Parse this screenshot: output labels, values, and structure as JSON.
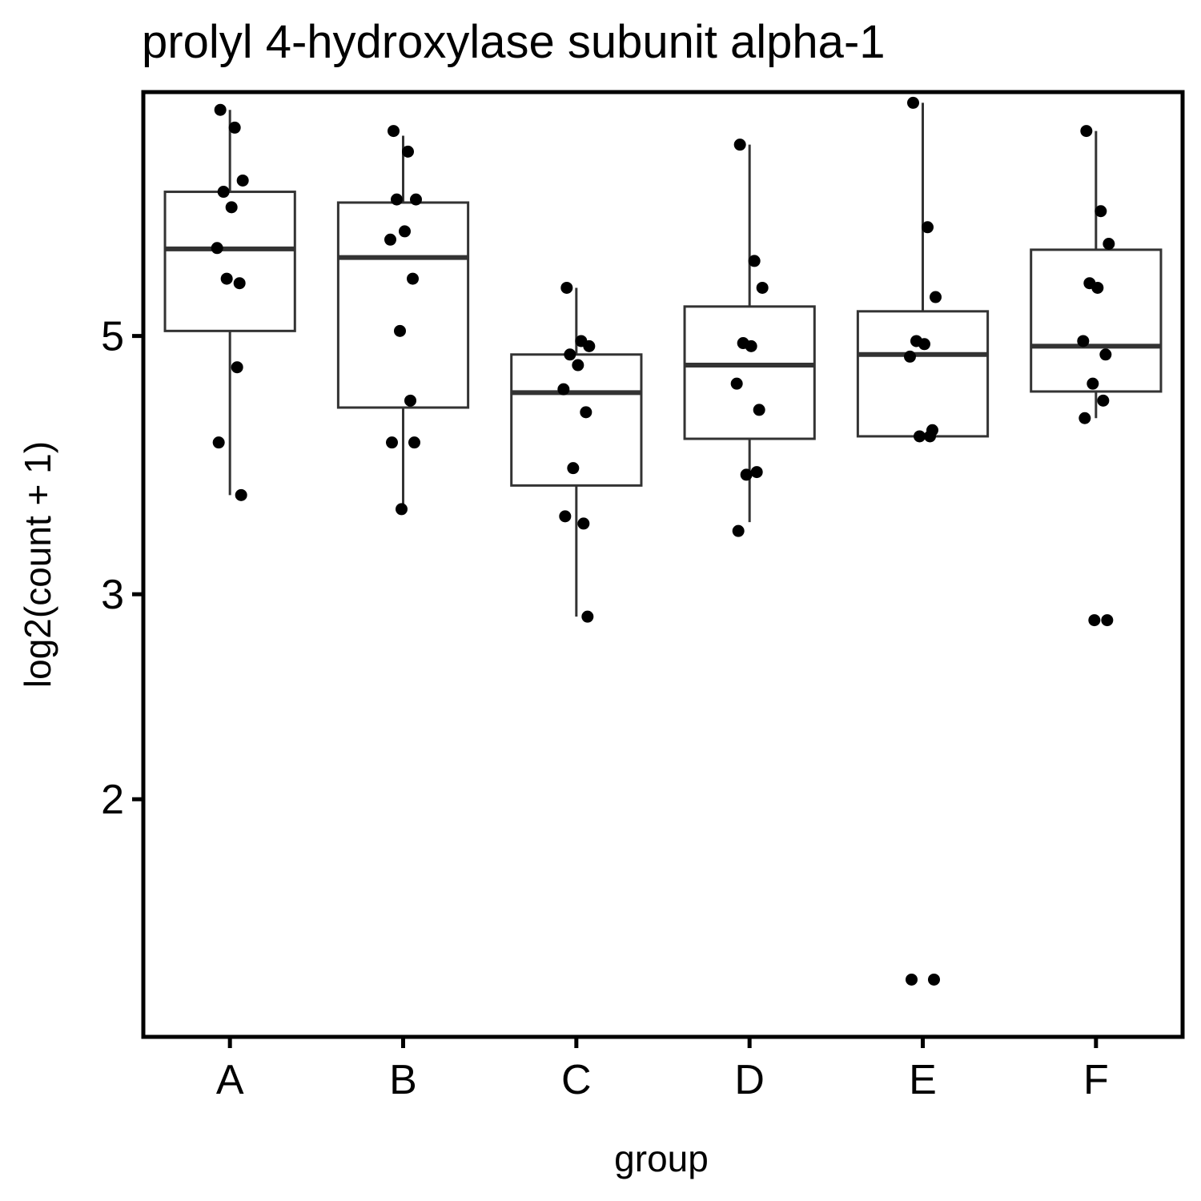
{
  "chart_data": {
    "type": "box",
    "title": "prolyl 4-hydroxylase subunit alpha-1",
    "xlabel": "group",
    "ylabel": "log2(count + 1)",
    "y_scale": "log",
    "y_ticks": [
      2,
      3,
      5
    ],
    "ylim": [
      1.25,
      8.1
    ],
    "grid": false,
    "categories": [
      "A",
      "B",
      "C",
      "D",
      "E",
      "F"
    ],
    "boxes": [
      {
        "group": "A",
        "whisker_low": 3.65,
        "q1": 5.05,
        "median": 5.94,
        "q3": 6.65,
        "whisker_high": 7.82
      },
      {
        "group": "B",
        "whisker_low": 3.55,
        "q1": 4.34,
        "median": 5.84,
        "q3": 6.51,
        "whisker_high": 7.43
      },
      {
        "group": "C",
        "whisker_low": 2.87,
        "q1": 3.72,
        "median": 4.47,
        "q3": 4.82,
        "whisker_high": 5.5
      },
      {
        "group": "D",
        "whisker_low": 3.46,
        "q1": 4.08,
        "median": 4.72,
        "q3": 5.3,
        "whisker_high": 7.3
      },
      {
        "group": "E",
        "whisker_low": 4.1,
        "q1": 4.1,
        "median": 4.82,
        "q3": 5.25,
        "whisker_high": 7.93
      },
      {
        "group": "F",
        "whisker_low": 4.25,
        "q1": 4.48,
        "median": 4.9,
        "q3": 5.93,
        "whisker_high": 7.5
      }
    ],
    "points": [
      {
        "group": "A",
        "values": [
          7.82,
          7.55,
          6.8,
          6.65,
          6.45,
          5.95,
          5.55,
          5.6,
          4.7,
          4.05,
          3.65
        ]
      },
      {
        "group": "B",
        "values": [
          7.5,
          7.2,
          6.55,
          6.55,
          6.15,
          6.05,
          5.6,
          5.05,
          4.4,
          4.05,
          4.05,
          3.55
        ]
      },
      {
        "group": "C",
        "values": [
          5.5,
          4.95,
          4.9,
          4.82,
          4.72,
          4.5,
          4.3,
          3.85,
          3.45,
          3.5,
          2.87
        ]
      },
      {
        "group": "D",
        "values": [
          7.3,
          5.8,
          5.5,
          4.93,
          4.9,
          4.55,
          4.32,
          3.8,
          3.82,
          3.4
        ]
      },
      {
        "group": "E",
        "values": [
          7.93,
          6.2,
          5.4,
          4.95,
          4.92,
          4.8,
          4.15,
          4.1,
          4.1,
          1.4,
          1.4
        ]
      },
      {
        "group": "F",
        "values": [
          7.5,
          6.4,
          6.0,
          5.55,
          5.5,
          4.95,
          4.82,
          4.55,
          4.4,
          4.25,
          2.85,
          2.85
        ]
      }
    ]
  }
}
